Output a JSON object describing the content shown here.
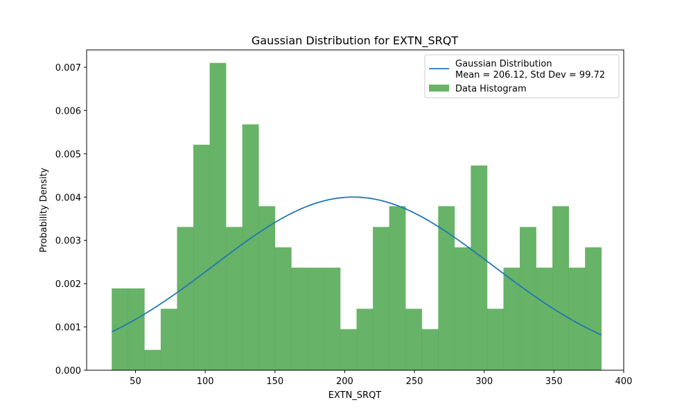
{
  "chart_data": {
    "type": "bar",
    "title": "Gaussian Distribution for EXTN_SRQT",
    "xlabel": "EXTN_SRQT",
    "ylabel": "Probability Density",
    "xlim": [
      15,
      400
    ],
    "ylim": [
      0,
      0.0074
    ],
    "x_ticks": [
      50,
      100,
      150,
      200,
      250,
      300,
      350,
      400
    ],
    "y_ticks": [
      0.0,
      0.001,
      0.002,
      0.003,
      0.004,
      0.005,
      0.006,
      0.007
    ],
    "x_tick_labels": [
      "50",
      "100",
      "150",
      "200",
      "250",
      "300",
      "350",
      "400"
    ],
    "y_tick_labels": [
      "0.000",
      "0.001",
      "0.002",
      "0.003",
      "0.004",
      "0.005",
      "0.006",
      "0.007"
    ],
    "legend_position": "upper right",
    "histogram": {
      "name": "Data Histogram",
      "color": "#4ca64c",
      "opacity": 0.85,
      "bin_start": 33,
      "bin_end": 384,
      "values": [
        0.00189,
        0.00189,
        0.00047,
        0.00142,
        0.00331,
        0.00521,
        0.0071,
        0.00331,
        0.00568,
        0.00379,
        0.00284,
        0.00237,
        0.00237,
        0.00237,
        0.00095,
        0.00142,
        0.00331,
        0.00379,
        0.00142,
        0.00095,
        0.00379,
        0.00284,
        0.00473,
        0.00142,
        0.00237,
        0.00331,
        0.00237,
        0.00379,
        0.00237,
        0.00284
      ]
    },
    "gaussian": {
      "name_line1": "Gaussian Distribution",
      "name_line2": "Mean = 206.12, Std Dev = 99.72",
      "mean": 206.12,
      "std": 99.72,
      "x_range": [
        33,
        384
      ],
      "color": "#1f77b4"
    }
  }
}
